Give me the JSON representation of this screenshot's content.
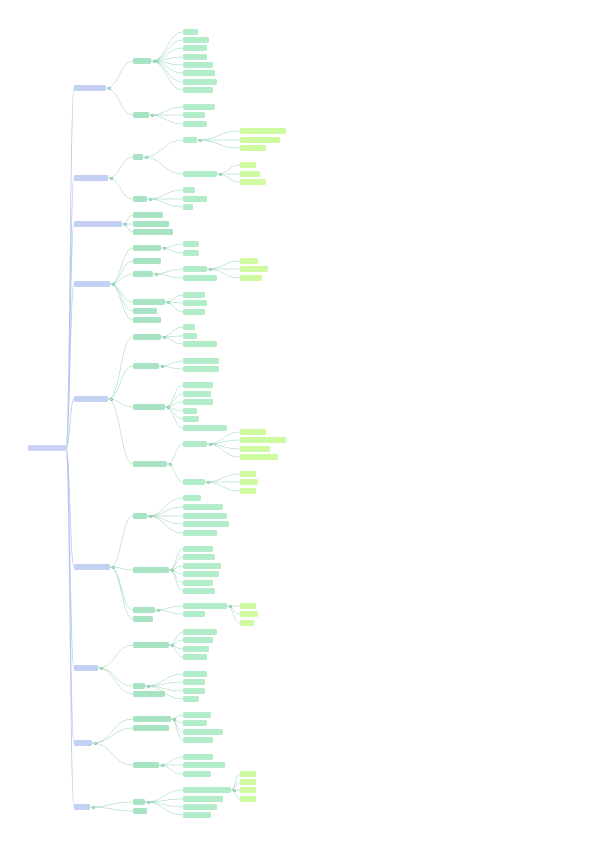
{
  "colors": {
    "level0": "#c9d4f5",
    "level1": "#c4d0f4",
    "level2": "#a8e3c4",
    "level3": "#b2ecc8",
    "level4": "#cffba0",
    "level5": "#e2ffa6",
    "link_blue": "#b4c6ef",
    "link_green": "#8fd3b3"
  },
  "mindmap": {
    "root": {
      "id": "root",
      "label": "",
      "children": [
        {
          "id": "b1",
          "label": "",
          "children": [
            {
              "id": "b1a",
              "label": "",
              "children": [
                {
                  "id": "b1a1",
                  "label": ""
                },
                {
                  "id": "b1a2",
                  "label": ""
                },
                {
                  "id": "b1a3",
                  "label": ""
                },
                {
                  "id": "b1a4",
                  "label": ""
                },
                {
                  "id": "b1a5",
                  "label": ""
                },
                {
                  "id": "b1a6",
                  "label": ""
                },
                {
                  "id": "b1a7",
                  "label": ""
                },
                {
                  "id": "b1a8",
                  "label": ""
                }
              ]
            },
            {
              "id": "b1b",
              "label": "",
              "children": [
                {
                  "id": "b1b1",
                  "label": ""
                },
                {
                  "id": "b1b2",
                  "label": ""
                },
                {
                  "id": "b1b3",
                  "label": ""
                }
              ]
            }
          ]
        },
        {
          "id": "b2",
          "label": "",
          "children": [
            {
              "id": "b2a",
              "label": "",
              "children": [
                {
                  "id": "b2a1",
                  "label": "",
                  "children": [
                    {
                      "id": "b2a1a",
                      "label": ""
                    },
                    {
                      "id": "b2a1b",
                      "label": ""
                    },
                    {
                      "id": "b2a1c",
                      "label": ""
                    }
                  ]
                },
                {
                  "id": "b2a2",
                  "label": "",
                  "children": [
                    {
                      "id": "b2a2a",
                      "label": ""
                    },
                    {
                      "id": "b2a2b",
                      "label": ""
                    },
                    {
                      "id": "b2a2c",
                      "label": ""
                    }
                  ]
                }
              ]
            },
            {
              "id": "b2b",
              "label": "",
              "children": [
                {
                  "id": "b2b1",
                  "label": ""
                },
                {
                  "id": "b2b2",
                  "label": ""
                },
                {
                  "id": "b2b3",
                  "label": ""
                }
              ]
            }
          ]
        },
        {
          "id": "b3",
          "label": "",
          "children": [
            {
              "id": "b3a",
              "label": ""
            },
            {
              "id": "b3b",
              "label": ""
            },
            {
              "id": "b3c",
              "label": ""
            }
          ]
        },
        {
          "id": "b4",
          "label": "",
          "children": [
            {
              "id": "b4a",
              "label": "",
              "children": [
                {
                  "id": "b4a1",
                  "label": ""
                },
                {
                  "id": "b4a2",
                  "label": ""
                }
              ]
            },
            {
              "id": "b4b",
              "label": ""
            },
            {
              "id": "b4c",
              "label": "",
              "children": [
                {
                  "id": "b4c1",
                  "label": "",
                  "children": [
                    {
                      "id": "b4c1a",
                      "label": ""
                    },
                    {
                      "id": "b4c1b",
                      "label": ""
                    },
                    {
                      "id": "b4c1c",
                      "label": ""
                    }
                  ]
                },
                {
                  "id": "b4c2",
                  "label": ""
                }
              ]
            },
            {
              "id": "b4d",
              "label": "",
              "children": [
                {
                  "id": "b4d1",
                  "label": ""
                },
                {
                  "id": "b4d2",
                  "label": ""
                },
                {
                  "id": "b4d3",
                  "label": ""
                }
              ]
            },
            {
              "id": "b4e",
              "label": ""
            },
            {
              "id": "b4f",
              "label": ""
            }
          ]
        },
        {
          "id": "b5",
          "label": "",
          "children": [
            {
              "id": "b5a",
              "label": "",
              "children": [
                {
                  "id": "b5a1",
                  "label": ""
                },
                {
                  "id": "b5a2",
                  "label": ""
                },
                {
                  "id": "b5a3",
                  "label": ""
                }
              ]
            },
            {
              "id": "b5b",
              "label": "",
              "children": [
                {
                  "id": "b5b1",
                  "label": ""
                },
                {
                  "id": "b5b2",
                  "label": ""
                }
              ]
            },
            {
              "id": "b5c",
              "label": "",
              "children": [
                {
                  "id": "b5c1",
                  "label": ""
                },
                {
                  "id": "b5c2",
                  "label": ""
                },
                {
                  "id": "b5c3",
                  "label": ""
                },
                {
                  "id": "b5c4",
                  "label": ""
                },
                {
                  "id": "b5c5",
                  "label": ""
                },
                {
                  "id": "b5c6",
                  "label": ""
                }
              ]
            },
            {
              "id": "b5d",
              "label": "",
              "children": [
                {
                  "id": "b5d1",
                  "label": "",
                  "children": [
                    {
                      "id": "b5d1a",
                      "label": ""
                    },
                    {
                      "id": "b5d1b",
                      "label": ""
                    },
                    {
                      "id": "b5d1c",
                      "label": ""
                    },
                    {
                      "id": "b5d1d",
                      "label": ""
                    }
                  ]
                },
                {
                  "id": "b5d2",
                  "label": "",
                  "children": [
                    {
                      "id": "b5d2a",
                      "label": ""
                    },
                    {
                      "id": "b5d2b",
                      "label": ""
                    },
                    {
                      "id": "b5d2c",
                      "label": ""
                    }
                  ]
                }
              ]
            }
          ]
        },
        {
          "id": "b6",
          "label": "",
          "children": [
            {
              "id": "b6a",
              "label": "",
              "children": [
                {
                  "id": "b6a1",
                  "label": ""
                },
                {
                  "id": "b6a2",
                  "label": ""
                },
                {
                  "id": "b6a3",
                  "label": ""
                },
                {
                  "id": "b6a4",
                  "label": ""
                },
                {
                  "id": "b6a5",
                  "label": ""
                }
              ]
            },
            {
              "id": "b6b",
              "label": "",
              "children": [
                {
                  "id": "b6b1",
                  "label": ""
                },
                {
                  "id": "b6b2",
                  "label": ""
                },
                {
                  "id": "b6b3",
                  "label": ""
                },
                {
                  "id": "b6b4",
                  "label": ""
                },
                {
                  "id": "b6b5",
                  "label": ""
                },
                {
                  "id": "b6b6",
                  "label": ""
                }
              ]
            },
            {
              "id": "b6c",
              "label": "",
              "children": [
                {
                  "id": "b6c1",
                  "label": "",
                  "children": [
                    {
                      "id": "b6c1a",
                      "label": ""
                    },
                    {
                      "id": "b6c1b",
                      "label": ""
                    },
                    {
                      "id": "b6c1c",
                      "label": ""
                    }
                  ]
                },
                {
                  "id": "b6c2",
                  "label": ""
                }
              ]
            },
            {
              "id": "b6d",
              "label": ""
            }
          ]
        },
        {
          "id": "b7",
          "label": "",
          "children": [
            {
              "id": "b7a",
              "label": "",
              "children": [
                {
                  "id": "b7a1",
                  "label": ""
                },
                {
                  "id": "b7a2",
                  "label": ""
                },
                {
                  "id": "b7a3",
                  "label": ""
                },
                {
                  "id": "b7a4",
                  "label": ""
                }
              ]
            },
            {
              "id": "b7b",
              "label": "",
              "children": [
                {
                  "id": "b7b1",
                  "label": ""
                },
                {
                  "id": "b7b2",
                  "label": ""
                },
                {
                  "id": "b7b3",
                  "label": ""
                },
                {
                  "id": "b7b4",
                  "label": ""
                }
              ]
            },
            {
              "id": "b7c",
              "label": ""
            }
          ]
        },
        {
          "id": "b8",
          "label": "",
          "children": [
            {
              "id": "b8a",
              "label": "",
              "children": [
                {
                  "id": "b8a1",
                  "label": ""
                },
                {
                  "id": "b8a2",
                  "label": ""
                },
                {
                  "id": "b8a3",
                  "label": ""
                },
                {
                  "id": "b8a4",
                  "label": ""
                }
              ]
            },
            {
              "id": "b8b",
              "label": "",
              "children": [
                {
                  "id": "b8b1",
                  "label": ""
                },
                {
                  "id": "b8b2",
                  "label": ""
                },
                {
                  "id": "b8b3",
                  "label": ""
                }
              ]
            },
            {
              "id": "b8c",
              "label": ""
            }
          ]
        },
        {
          "id": "b9",
          "label": "",
          "children": [
            {
              "id": "b9a",
              "label": "",
              "children": [
                {
                  "id": "b9a1",
                  "label": "",
                  "children": [
                    {
                      "id": "b9a1a",
                      "label": ""
                    },
                    {
                      "id": "b9a1b",
                      "label": ""
                    },
                    {
                      "id": "b9a1c",
                      "label": ""
                    },
                    {
                      "id": "b9a1d",
                      "label": ""
                    }
                  ]
                },
                {
                  "id": "b9a2",
                  "label": ""
                },
                {
                  "id": "b9a3",
                  "label": ""
                },
                {
                  "id": "b9a4",
                  "label": ""
                }
              ]
            },
            {
              "id": "b9b",
              "label": ""
            }
          ]
        }
      ]
    }
  }
}
